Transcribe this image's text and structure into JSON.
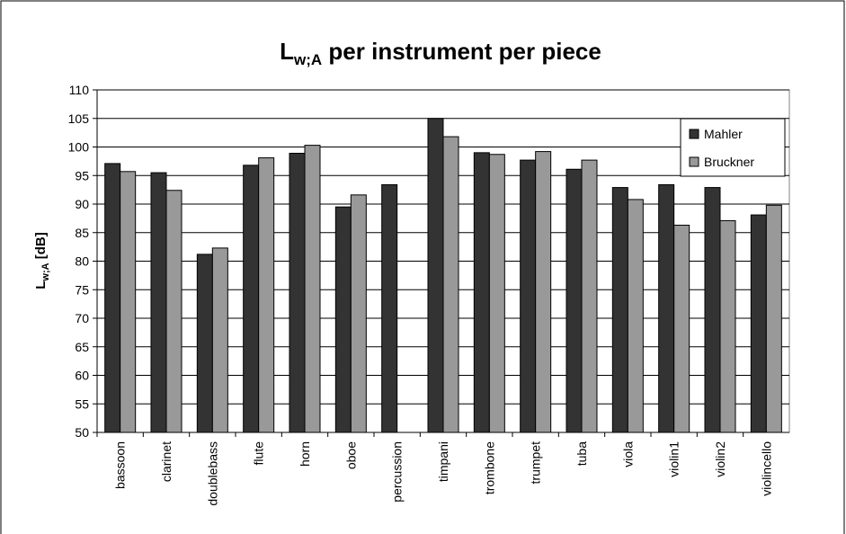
{
  "chart_data": {
    "type": "bar",
    "title": [
      "L",
      "w;A",
      " per instrument per piece"
    ],
    "y_label": [
      "L",
      "w;A",
      " [dB]"
    ],
    "categories": [
      "bassoon",
      "clarinet",
      "doublebass",
      "flute",
      "horn",
      "oboe",
      "percussion",
      "timpani",
      "trombone",
      "trumpet",
      "tuba",
      "viola",
      "violin1",
      "violin2",
      "violincello"
    ],
    "series": [
      {
        "name": "Mahler",
        "color": "#333333",
        "values": [
          97.1,
          95.5,
          81.2,
          96.8,
          98.9,
          89.5,
          93.4,
          105,
          99,
          97.7,
          96.1,
          92.9,
          93.4,
          92.9,
          88.1
        ]
      },
      {
        "name": "Bruckner",
        "color": "#999999",
        "values": [
          95.7,
          92.4,
          82.3,
          98.1,
          100.3,
          91.6,
          null,
          101.8,
          98.7,
          99.2,
          97.7,
          90.8,
          86.3,
          87.1,
          89.8
        ]
      }
    ],
    "ylim": [
      50,
      110
    ],
    "yticks": [
      50,
      55,
      60,
      65,
      70,
      75,
      80,
      85,
      90,
      95,
      100,
      105,
      110
    ],
    "grid": true,
    "legend": "upper right"
  }
}
